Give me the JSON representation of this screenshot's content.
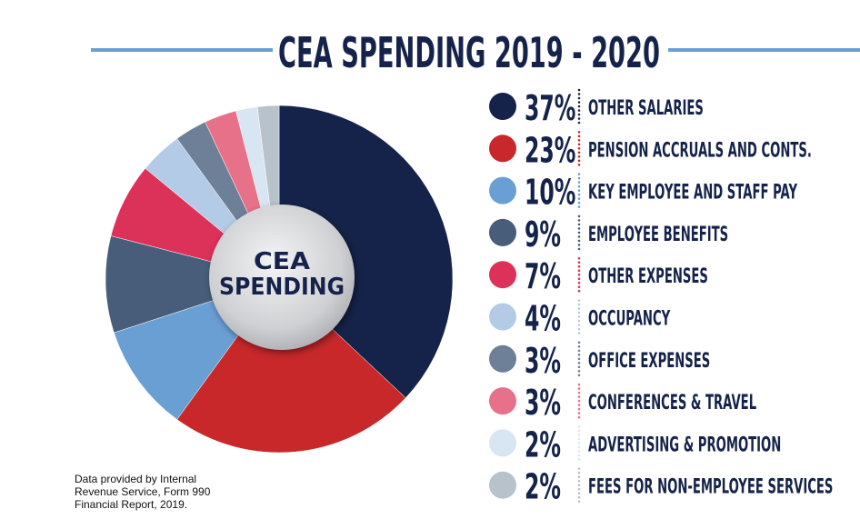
{
  "chart_data": {
    "type": "pie",
    "title": "CEA SPENDING 2019 - 2020",
    "center_label": [
      "CEA",
      "SPENDING"
    ],
    "categories": [
      "OTHER SALARIES",
      "PENSION ACCRUALS AND CONTS.",
      "KEY EMPLOYEE AND STAFF PAY",
      "EMPLOYEE BENEFITS",
      "OTHER EXPENSES",
      "OCCUPANCY",
      "OFFICE EXPENSES",
      "CONFERENCES & TRAVEL",
      "ADVERTISING & PROMOTION",
      "FEES FOR NON-EMPLOYEE SERVICES"
    ],
    "values": [
      37,
      23,
      10,
      9,
      7,
      4,
      3,
      3,
      2,
      2
    ],
    "value_labels": [
      "37%",
      "23%",
      "10%",
      "9%",
      "7%",
      "4%",
      "3%",
      "3%",
      "2%",
      "2%"
    ],
    "colors": [
      "#15234a",
      "#c8282a",
      "#6a9fd4",
      "#475d7a",
      "#dc3158",
      "#b3cbe6",
      "#6e7f98",
      "#e8718a",
      "#d8e6f3",
      "#b8c2cb"
    ],
    "note": [
      "Data provided by Internal",
      "Revenue Service, Form 990",
      "Financial Report, 2019."
    ]
  }
}
